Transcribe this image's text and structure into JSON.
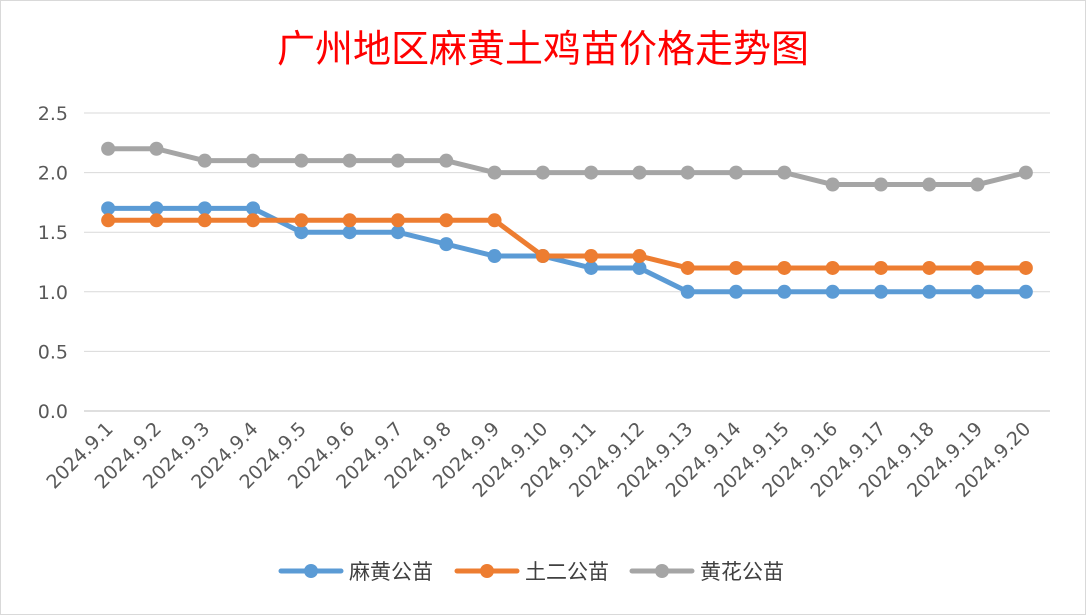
{
  "chart_data": {
    "type": "line",
    "title": "广州地区麻黄土鸡苗价格走势图",
    "xlabel": "",
    "ylabel": "",
    "ylim": [
      0,
      2.5
    ],
    "yticks": [
      "0.0",
      "0.5",
      "1.0",
      "1.5",
      "2.0",
      "2.5"
    ],
    "grid": true,
    "legend_position": "bottom",
    "categories": [
      "2024.9.1",
      "2024.9.2",
      "2024.9.3",
      "2024.9.4",
      "2024.9.5",
      "2024.9.6",
      "2024.9.7",
      "2024.9.8",
      "2024.9.9",
      "2024.9.10",
      "2024.9.11",
      "2024.9.12",
      "2024.9.13",
      "2024.9.14",
      "2024.9.15",
      "2024.9.16",
      "2024.9.17",
      "2024.9.18",
      "2024.9.19",
      "2024.9.20"
    ],
    "series": [
      {
        "name": "麻黄公苗",
        "color": "#5b9bd5",
        "values": [
          1.7,
          1.7,
          1.7,
          1.7,
          1.5,
          1.5,
          1.5,
          1.4,
          1.3,
          1.3,
          1.2,
          1.2,
          1.0,
          1.0,
          1.0,
          1.0,
          1.0,
          1.0,
          1.0,
          1.0
        ]
      },
      {
        "name": "土二公苗",
        "color": "#ed7d31",
        "values": [
          1.6,
          1.6,
          1.6,
          1.6,
          1.6,
          1.6,
          1.6,
          1.6,
          1.6,
          1.3,
          1.3,
          1.3,
          1.2,
          1.2,
          1.2,
          1.2,
          1.2,
          1.2,
          1.2,
          1.2
        ]
      },
      {
        "name": "黄花公苗",
        "color": "#a5a5a5",
        "values": [
          2.2,
          2.2,
          2.1,
          2.1,
          2.1,
          2.1,
          2.1,
          2.1,
          2.0,
          2.0,
          2.0,
          2.0,
          2.0,
          2.0,
          2.0,
          1.9,
          1.9,
          1.9,
          1.9,
          2.0
        ]
      }
    ]
  }
}
